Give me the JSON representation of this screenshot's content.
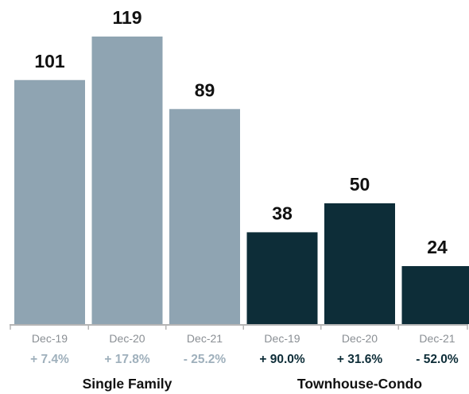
{
  "chart_data": {
    "type": "bar",
    "categories": [
      "Dec-19",
      "Dec-20",
      "Dec-21"
    ],
    "groups": [
      {
        "name": "Single Family",
        "color": "#8fa4b2",
        "change_color": "#9fb0bc",
        "categories": [
          "Dec-19",
          "Dec-20",
          "Dec-21"
        ],
        "values": [
          101,
          119,
          89
        ],
        "value_labels": [
          "101",
          "119",
          "89"
        ],
        "changes": [
          "+ 7.4%",
          "+ 17.8%",
          "- 25.2%"
        ]
      },
      {
        "name": "Townhouse-Condo",
        "color": "#0d2d38",
        "change_color": "#0d2d38",
        "categories": [
          "Dec-19",
          "Dec-20",
          "Dec-21"
        ],
        "values": [
          38,
          50,
          24
        ],
        "value_labels": [
          "38",
          "50",
          "24"
        ],
        "changes": [
          "+ 90.0%",
          "+ 31.6%",
          "- 52.0%"
        ]
      }
    ],
    "ylim": [
      0,
      119
    ],
    "grid": false,
    "axis_color": "#b5b5b5",
    "title": "",
    "xlabel": "",
    "ylabel": ""
  }
}
